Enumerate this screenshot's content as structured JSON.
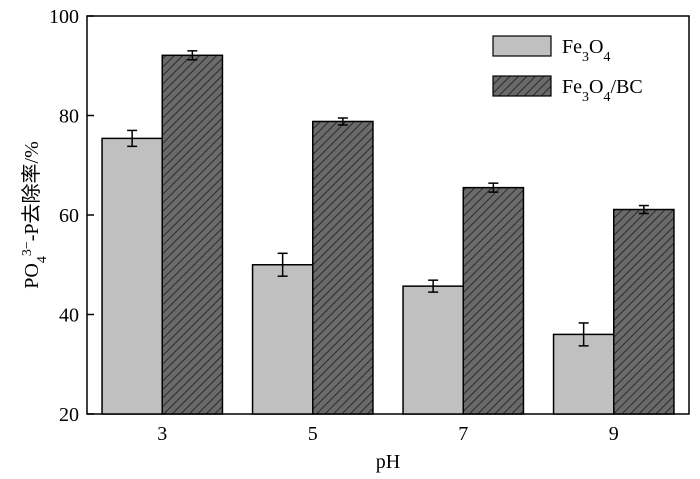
{
  "chart_data": {
    "type": "bar",
    "categories": [
      "3",
      "5",
      "7",
      "9"
    ],
    "series": [
      {
        "name": "Fe3O4",
        "name_parts": [
          [
            "Fe",
            "normal"
          ],
          [
            "3",
            "sub"
          ],
          [
            "O",
            "normal"
          ],
          [
            "4",
            "sub"
          ]
        ],
        "values": [
          75.4,
          50.0,
          45.7,
          36.0
        ],
        "errors": [
          1.6,
          2.3,
          1.2,
          2.3
        ],
        "color": "#c0c0c0",
        "hatched": false
      },
      {
        "name": "Fe3O4/BC",
        "name_parts": [
          [
            "Fe",
            "normal"
          ],
          [
            "3",
            "sub"
          ],
          [
            "O",
            "normal"
          ],
          [
            "4",
            "sub"
          ],
          [
            "/BC",
            "normal"
          ]
        ],
        "values": [
          92.1,
          78.8,
          65.5,
          61.1
        ],
        "errors": [
          0.9,
          0.7,
          0.9,
          0.8
        ],
        "color": "#666666",
        "hatched": true
      }
    ],
    "yticks": [
      20,
      40,
      60,
      80,
      100
    ],
    "ylim": [
      20,
      100
    ],
    "xlabel": "pH",
    "ylabel": "PO43−-P去除率/%",
    "ylabel_parts": [
      [
        "PO",
        "normal"
      ],
      [
        "4",
        "sub"
      ],
      [
        "3−",
        "sup"
      ],
      [
        "-P去除率/%",
        "normal"
      ]
    ],
    "legend_position": "top-right",
    "grid": false
  }
}
